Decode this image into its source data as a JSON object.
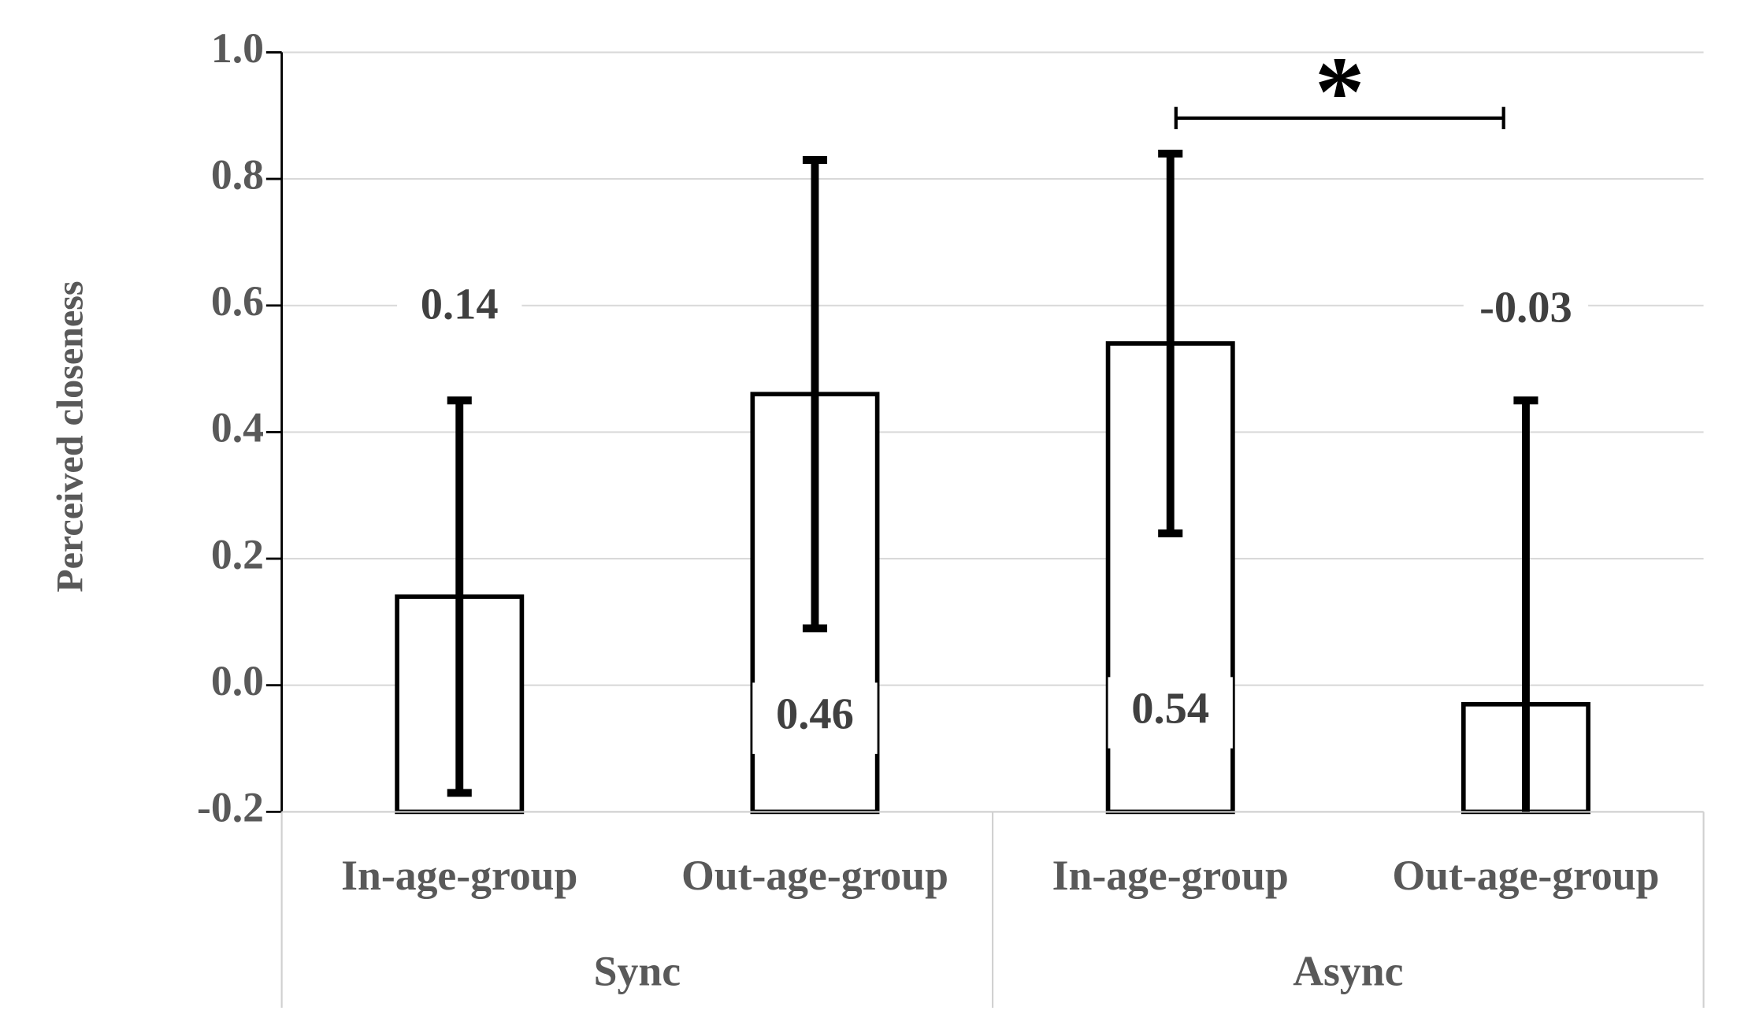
{
  "chart_data": {
    "type": "bar",
    "y_label": "Perceived closeness",
    "categories": [
      "In-age-group",
      "Out-age-group",
      "In-age-group",
      "Out-age-group"
    ],
    "groups": [
      "Sync",
      "Async"
    ],
    "values": [
      0.14,
      0.46,
      0.54,
      -0.03
    ],
    "errors": [
      0.31,
      0.37,
      0.3,
      0.48
    ],
    "color": "#ffffff",
    "edge_color": "#000000",
    "ylim": [
      -0.2,
      1.0
    ],
    "yticks": [
      -0.2,
      {
        "value": 0,
        "label": "0.0"
      },
      0.2,
      0.4,
      0.6,
      0.8,
      {
        "value": 1,
        "label": "1.0"
      }
    ],
    "grid": true,
    "annotation": "*"
  }
}
